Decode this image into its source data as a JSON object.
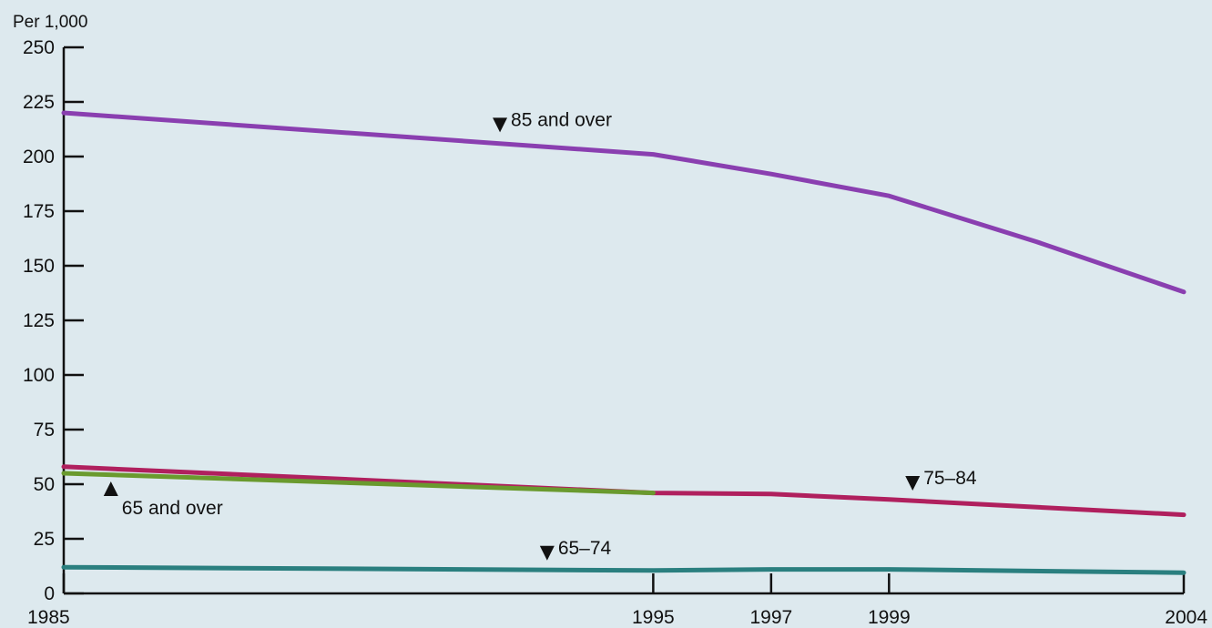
{
  "chart_data": {
    "type": "line",
    "ylabel": "Per 1,000",
    "ylim": [
      0,
      250
    ],
    "yticks": [
      "0",
      "25",
      "50",
      "75",
      "100",
      "125",
      "150",
      "175",
      "200",
      "225",
      "250"
    ],
    "xlim": [
      1985,
      2004
    ],
    "xticks": [
      "1985",
      "1995",
      "1997",
      "1999",
      "2004"
    ],
    "grid": false,
    "series": [
      {
        "name": "85 and over",
        "color": "#8a3fb0",
        "x": [
          1985,
          1995,
          1997,
          1999,
          2001.5,
          2004
        ],
        "y": [
          220,
          201,
          192,
          182,
          161,
          138
        ],
        "label_anchor": [
          1992.4,
          214
        ],
        "marker": "down"
      },
      {
        "name": "75–84",
        "color": "#b0205e",
        "x": [
          1985,
          1995,
          1997,
          1999,
          2004
        ],
        "y": [
          58,
          46,
          45.5,
          43,
          36
        ],
        "label_anchor": [
          1999.4,
          50
        ],
        "marker": "down"
      },
      {
        "name": "65 and over",
        "color": "#6a9a2e",
        "x": [
          1985,
          1995
        ],
        "y": [
          55,
          46
        ],
        "label_anchor": [
          1985.8,
          47.5
        ],
        "marker": "up"
      },
      {
        "name": "65–74",
        "color": "#2a7f7f",
        "x": [
          1985,
          1995,
          1997,
          1999,
          2004
        ],
        "y": [
          12,
          10.5,
          11,
          11,
          9.5
        ],
        "label_anchor": [
          1993.2,
          18
        ],
        "marker": "down"
      }
    ]
  }
}
